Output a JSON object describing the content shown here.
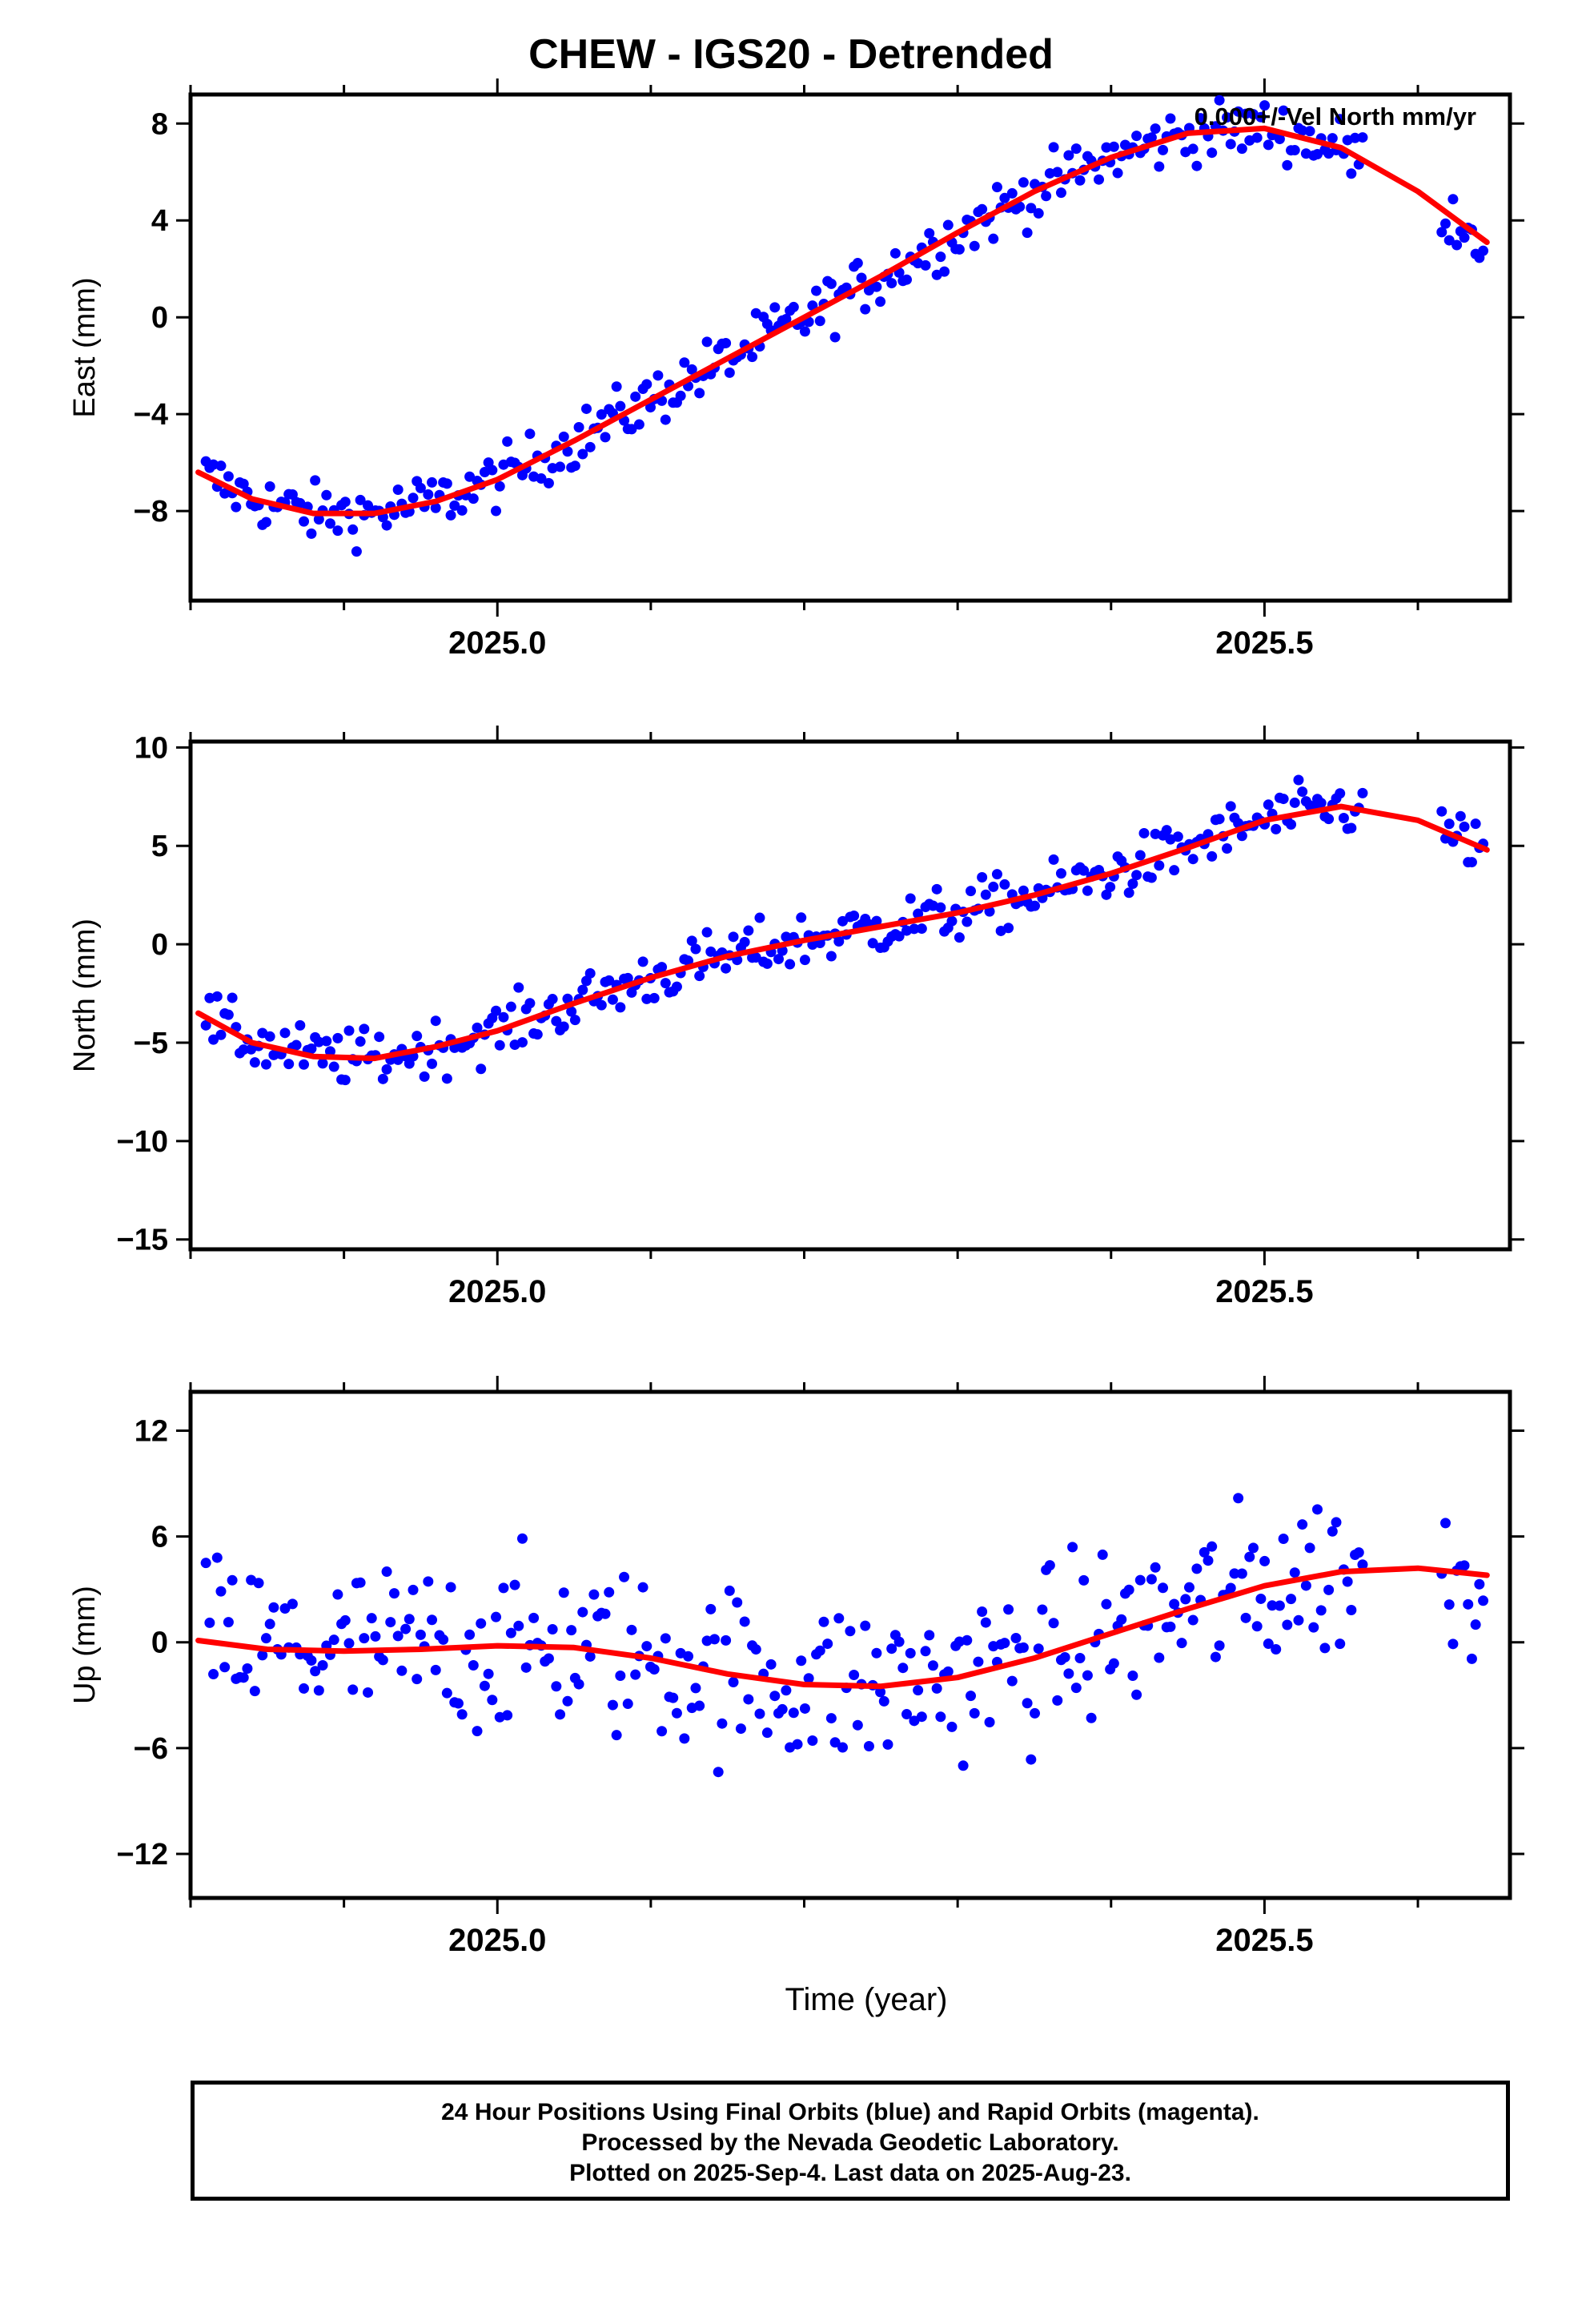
{
  "title": "CHEW - IGS20 - Detrended",
  "colors": {
    "final_orbits": "#0000ff",
    "fit": "#ff0000",
    "axes": "#000000"
  },
  "chart_data": [
    {
      "id": "east",
      "type": "scatter",
      "ylabel": "East (mm)",
      "xlabel": "",
      "annotation": "0.000+/-Vel North mm/yr",
      "xlim": [
        2024.8,
        2025.66
      ],
      "ylim": [
        -11.7,
        9.2
      ],
      "yticks": [
        8,
        4,
        0,
        -4,
        -8
      ],
      "ytick_labels": [
        "8",
        "4",
        "0",
        "−4",
        "−8"
      ],
      "xticks": [
        2025.0,
        2025.5
      ],
      "xtick_labels": [
        "2025.0",
        "2025.5"
      ],
      "series": [
        {
          "style": "points",
          "color": "#0000ff",
          "nominal_start": -8.4,
          "nominal_end": 7.8,
          "nominal_mid_wave": 0.6,
          "scatter_amp": 1.1
        },
        {
          "style": "fit",
          "color": "#ff0000",
          "x": [
            2024.805,
            2024.84,
            2024.88,
            2024.92,
            2024.96,
            2025.0,
            2025.05,
            2025.1,
            2025.15,
            2025.2,
            2025.25,
            2025.3,
            2025.35,
            2025.4,
            2025.45,
            2025.5,
            2025.55,
            2025.6,
            2025.645
          ],
          "y": [
            -6.4,
            -7.5,
            -8.1,
            -8.1,
            -7.6,
            -6.7,
            -5.1,
            -3.4,
            -1.7,
            0.0,
            1.7,
            3.5,
            5.2,
            6.6,
            7.6,
            7.8,
            7.0,
            5.2,
            3.1
          ]
        }
      ]
    },
    {
      "id": "north",
      "type": "scatter",
      "ylabel": "North (mm)",
      "xlabel": "",
      "xlim": [
        2024.8,
        2025.66
      ],
      "ylim": [
        -15.5,
        10.3
      ],
      "yticks": [
        10,
        5,
        0,
        -5,
        -10,
        -15
      ],
      "ytick_labels": [
        "10",
        "5",
        "0",
        "−5",
        "−10",
        "−15"
      ],
      "xticks": [
        2025.0,
        2025.5
      ],
      "xtick_labels": [
        "2025.0",
        "2025.5"
      ],
      "series": [
        {
          "style": "points",
          "color": "#0000ff",
          "scatter_amp": 1.3
        },
        {
          "style": "fit",
          "color": "#ff0000",
          "x": [
            2024.805,
            2024.84,
            2024.88,
            2024.92,
            2024.96,
            2025.0,
            2025.05,
            2025.1,
            2025.15,
            2025.2,
            2025.25,
            2025.3,
            2025.35,
            2025.4,
            2025.45,
            2025.5,
            2025.55,
            2025.6,
            2025.645
          ],
          "y": [
            -3.5,
            -5.0,
            -5.7,
            -5.8,
            -5.2,
            -4.4,
            -3.0,
            -1.7,
            -0.6,
            0.2,
            0.9,
            1.6,
            2.5,
            3.6,
            4.9,
            6.3,
            7.0,
            6.3,
            4.8
          ]
        }
      ]
    },
    {
      "id": "up",
      "type": "scatter",
      "ylabel": "Up (mm)",
      "xlabel": "Time (year)",
      "xlim": [
        2024.8,
        2025.66
      ],
      "ylim": [
        -14.5,
        14.2
      ],
      "yticks": [
        12,
        6,
        0,
        -6,
        -12
      ],
      "ytick_labels": [
        "12",
        "6",
        "0",
        "−6",
        "−12"
      ],
      "xticks": [
        2025.0,
        2025.5
      ],
      "xtick_labels": [
        "2025.0",
        "2025.5"
      ],
      "series": [
        {
          "style": "points",
          "color": "#0000ff",
          "scatter_amp": 4.5
        },
        {
          "style": "fit",
          "color": "#ff0000",
          "x": [
            2024.805,
            2024.85,
            2024.9,
            2024.95,
            2025.0,
            2025.05,
            2025.1,
            2025.15,
            2025.2,
            2025.25,
            2025.3,
            2025.35,
            2025.4,
            2025.45,
            2025.5,
            2025.55,
            2025.6,
            2025.645
          ],
          "y": [
            0.1,
            -0.4,
            -0.5,
            -0.4,
            -0.2,
            -0.3,
            -0.9,
            -1.8,
            -2.4,
            -2.5,
            -2.0,
            -0.9,
            0.5,
            1.9,
            3.2,
            4.0,
            4.2,
            3.8
          ]
        }
      ]
    }
  ],
  "footer": {
    "line1": "24 Hour Positions Using Final Orbits (blue) and Rapid Orbits (magenta).",
    "line2": "Processed by the Nevada Geodetic Laboratory.",
    "line3": "Plotted on 2025-Sep-4. Last data on 2025-Aug-23."
  }
}
